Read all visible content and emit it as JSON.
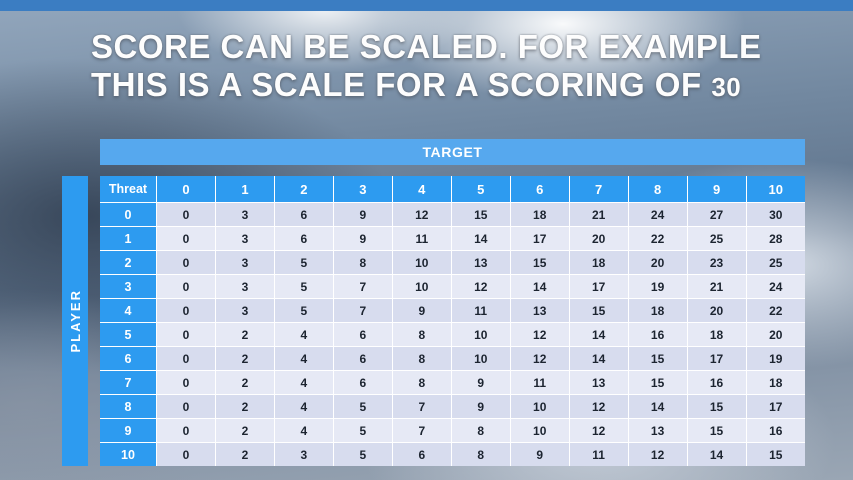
{
  "title": {
    "line1": "SCORE CAN BE SCALED. FOR EXAMPLE",
    "line2": "THIS IS A SCALE FOR A SCORING OF",
    "line2_number": "30"
  },
  "table": {
    "target_label": "TARGET",
    "player_label": "PLAYER",
    "corner_label": "Threat",
    "col_headers": [
      "0",
      "1",
      "2",
      "3",
      "4",
      "5",
      "6",
      "7",
      "8",
      "9",
      "10"
    ],
    "rows": [
      {
        "header": "0",
        "values": [
          0,
          3,
          6,
          9,
          12,
          15,
          18,
          21,
          24,
          27,
          30
        ]
      },
      {
        "header": "1",
        "values": [
          0,
          3,
          6,
          9,
          11,
          14,
          17,
          20,
          22,
          25,
          28
        ]
      },
      {
        "header": "2",
        "values": [
          0,
          3,
          5,
          8,
          10,
          13,
          15,
          18,
          20,
          23,
          25
        ]
      },
      {
        "header": "3",
        "values": [
          0,
          3,
          5,
          7,
          10,
          12,
          14,
          17,
          19,
          21,
          24
        ]
      },
      {
        "header": "4",
        "values": [
          0,
          3,
          5,
          7,
          9,
          11,
          13,
          15,
          18,
          20,
          22
        ]
      },
      {
        "header": "5",
        "values": [
          0,
          2,
          4,
          6,
          8,
          10,
          12,
          14,
          16,
          18,
          20
        ]
      },
      {
        "header": "6",
        "values": [
          0,
          2,
          4,
          6,
          8,
          10,
          12,
          14,
          15,
          17,
          19
        ]
      },
      {
        "header": "7",
        "values": [
          0,
          2,
          4,
          6,
          8,
          9,
          11,
          13,
          15,
          16,
          18
        ]
      },
      {
        "header": "8",
        "values": [
          0,
          2,
          4,
          5,
          7,
          9,
          10,
          12,
          14,
          15,
          17
        ]
      },
      {
        "header": "9",
        "values": [
          0,
          2,
          4,
          5,
          7,
          8,
          10,
          12,
          13,
          15,
          16
        ]
      },
      {
        "header": "10",
        "values": [
          0,
          2,
          3,
          5,
          6,
          8,
          9,
          11,
          12,
          14,
          15
        ]
      }
    ]
  },
  "colors": {
    "top_bar": "#3b7dc2",
    "target_bar": "#56a8ee",
    "header_blue": "#2d9bf0",
    "row_band_a": "#d7dcee",
    "row_band_b": "#e6e9f5"
  }
}
